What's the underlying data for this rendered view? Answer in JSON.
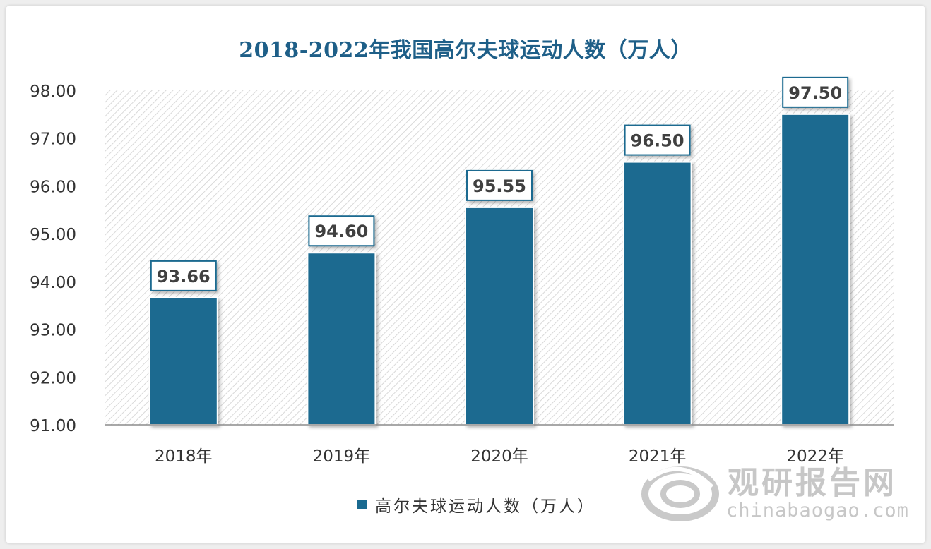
{
  "chart_data": {
    "type": "bar",
    "title": "2018-2022年我国高尔夫球运动人数（万人）",
    "categories": [
      "2018年",
      "2019年",
      "2020年",
      "2021年",
      "2022年"
    ],
    "series": [
      {
        "name": "高尔夫球运动人数（万人）",
        "values": [
          93.66,
          94.6,
          95.55,
          96.5,
          97.5
        ]
      }
    ],
    "data_labels": [
      "93.66",
      "94.60",
      "95.55",
      "96.50",
      "97.50"
    ],
    "y_ticks": [
      "91.00",
      "92.00",
      "93.00",
      "94.00",
      "95.00",
      "96.00",
      "97.00",
      "98.00"
    ],
    "ylim": [
      91,
      98
    ],
    "grid": false,
    "legend_position": "bottom",
    "bar_color": "#1a6a90",
    "title_color": "#1e5f88"
  },
  "watermark": {
    "name": "观研报告网",
    "url": "chinabaogao.com"
  }
}
